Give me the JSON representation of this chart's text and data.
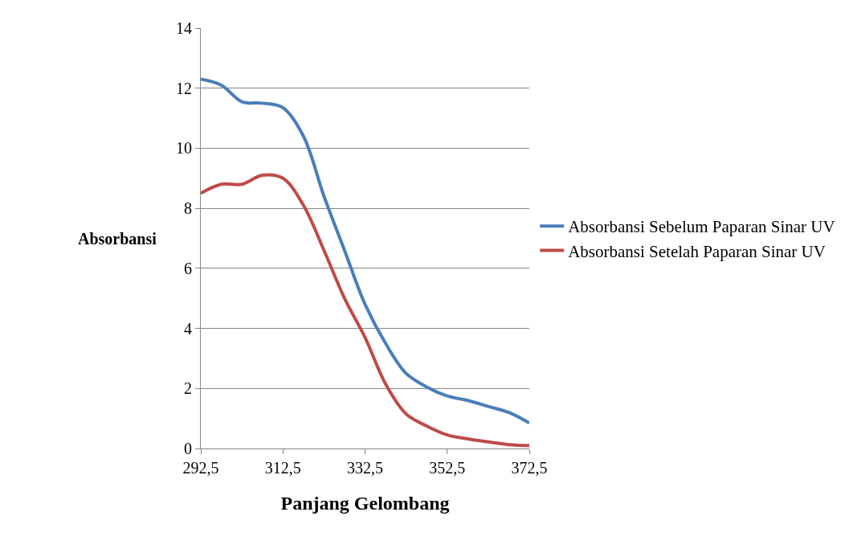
{
  "chart_data": {
    "type": "line",
    "xlabel": "Panjang Gelombang",
    "ylabel": "Absorbansi",
    "x": [
      292.5,
      297.5,
      302.5,
      307.5,
      312.5,
      317.5,
      322.5,
      327.5,
      332.5,
      337.5,
      342.5,
      347.5,
      352.5,
      357.5,
      362.5,
      367.5,
      372.5
    ],
    "series": [
      {
        "name": "Absorbansi Sebelum Paparan Sinar UV",
        "color": "#4a7ebb",
        "values": [
          12.3,
          12.1,
          11.55,
          11.5,
          11.35,
          10.4,
          8.4,
          6.6,
          4.8,
          3.5,
          2.5,
          2.05,
          1.75,
          1.6,
          1.4,
          1.2,
          0.85
        ]
      },
      {
        "name": "Absorbansi Setelah Paparan Sinar UV",
        "color": "#be4b48",
        "values": [
          8.5,
          8.8,
          8.8,
          9.1,
          9.0,
          8.1,
          6.6,
          5.0,
          3.7,
          2.15,
          1.15,
          0.75,
          0.45,
          0.32,
          0.22,
          0.13,
          0.1
        ]
      }
    ],
    "xlim": [
      292.5,
      372.5
    ],
    "xticks": [
      {
        "value": 292.5,
        "label": "292,5"
      },
      {
        "value": 312.5,
        "label": "312,5"
      },
      {
        "value": 332.5,
        "label": "332,5"
      },
      {
        "value": 352.5,
        "label": "352,5"
      },
      {
        "value": 372.5,
        "label": "372,5"
      }
    ],
    "ylim": [
      0,
      14
    ],
    "yticks": [
      0,
      2,
      4,
      6,
      8,
      10,
      12,
      14
    ],
    "grid": "y",
    "legend": "right",
    "marker": "none",
    "line_style": "solid"
  }
}
